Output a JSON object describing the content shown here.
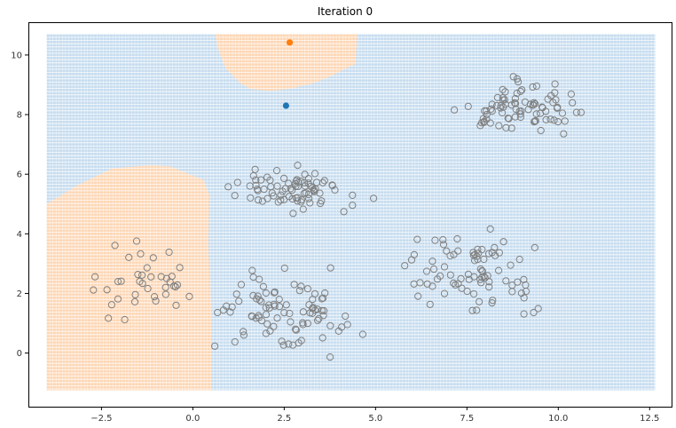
{
  "chart_data": {
    "type": "scatter",
    "title": "Iteration 0",
    "xlabel": "",
    "ylabel": "",
    "xlim": [
      -4.5,
      13.1
    ],
    "ylim": [
      -1.8,
      11.1
    ],
    "x_ticks": [
      -2.5,
      0.0,
      2.5,
      5.0,
      7.5,
      10.0,
      12.5
    ],
    "y_ticks": [
      0,
      2,
      4,
      6,
      8,
      10
    ],
    "x_tick_labels": [
      "−2.5",
      "0.0",
      "2.5",
      "5.0",
      "7.5",
      "10.0",
      "12.5"
    ],
    "y_tick_labels": [
      "0",
      "2",
      "4",
      "6",
      "8",
      "10"
    ],
    "grid": false,
    "background_regions": {
      "extent_x": [
        -4.0,
        12.65
      ],
      "extent_y": [
        -1.25,
        10.7
      ],
      "colors": {
        "class_0": "#c6dcef",
        "class_1": "#fdd6b4"
      },
      "class_1_areas": [
        {
          "name": "lower-left",
          "boundary": [
            [
              -4.0,
              -1.25
            ],
            [
              0.5,
              -1.25
            ],
            [
              0.5,
              1.6
            ],
            [
              0.42,
              3.6
            ],
            [
              0.45,
              5.3
            ],
            [
              0.3,
              5.8
            ],
            [
              -0.3,
              6.1
            ],
            [
              -0.6,
              6.25
            ],
            [
              -1.1,
              6.3
            ],
            [
              -2.2,
              6.2
            ],
            [
              -3.2,
              5.6
            ],
            [
              -4.0,
              5.0
            ]
          ]
        },
        {
          "name": "top",
          "boundary": [
            [
              0.6,
              10.7
            ],
            [
              4.5,
              10.7
            ],
            [
              4.45,
              9.7
            ],
            [
              4.2,
              9.55
            ],
            [
              3.7,
              9.25
            ],
            [
              3.3,
              9.05
            ],
            [
              2.6,
              8.85
            ],
            [
              2.1,
              8.8
            ],
            [
              1.6,
              8.85
            ],
            [
              1.3,
              9.05
            ],
            [
              0.9,
              9.55
            ],
            [
              0.72,
              10.1
            ]
          ]
        }
      ]
    },
    "centroids": [
      {
        "x": 2.55,
        "y": 8.3,
        "color": "#1f77b4"
      },
      {
        "x": 2.65,
        "y": 10.42,
        "color": "#ff7f0e"
      }
    ],
    "clusters": [
      {
        "cx": -1.3,
        "cy": 2.3,
        "sx": 1.0,
        "sy": 0.85,
        "n": 38
      },
      {
        "cx": 2.7,
        "cy": 5.5,
        "sx": 1.15,
        "sy": 0.45,
        "n": 80
      },
      {
        "cx": 9.0,
        "cy": 8.2,
        "sx": 1.25,
        "sy": 0.55,
        "n": 85
      },
      {
        "cx": 2.3,
        "cy": 1.4,
        "sx": 1.3,
        "sy": 0.85,
        "n": 90
      },
      {
        "cx": 7.7,
        "cy": 2.8,
        "sx": 1.25,
        "sy": 0.9,
        "n": 85
      }
    ],
    "point_style": {
      "fill": "none",
      "stroke": "#808080"
    }
  }
}
